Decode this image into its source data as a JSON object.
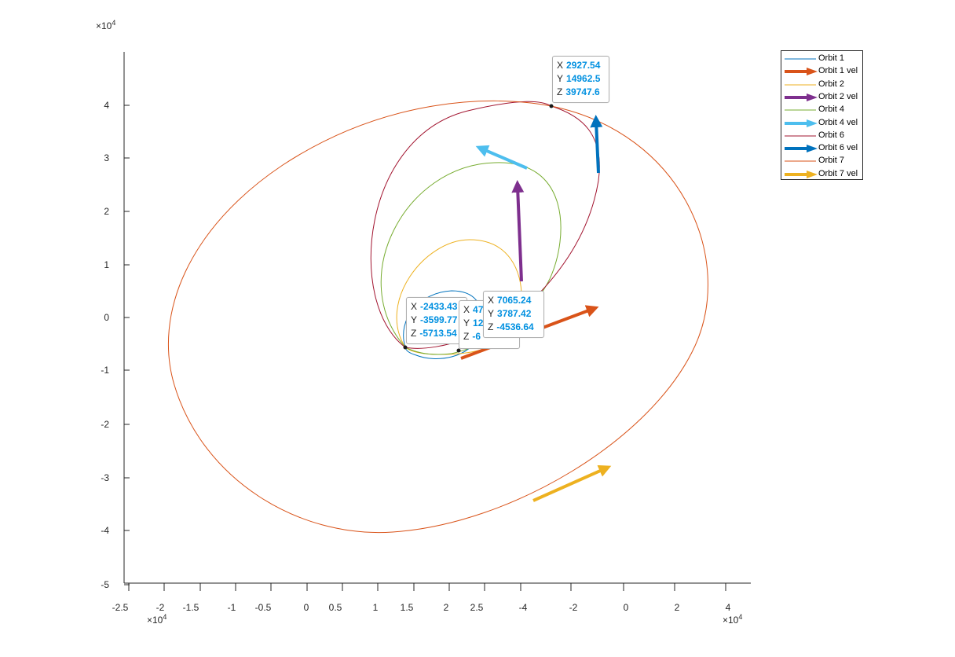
{
  "chart_data": {
    "type": "line",
    "title": "",
    "xlabel": "",
    "ylabel": "",
    "x_exponent": "×10",
    "x_exponent_power": "4",
    "y_exponent": "×10",
    "y_exponent_power": "4",
    "z_exponent": "×10",
    "z_exponent_power": "4",
    "y_ticks": [
      "-5",
      "-4",
      "-3",
      "-2",
      "-1",
      "0",
      "1",
      "2",
      "3",
      "4"
    ],
    "x_ticks": [
      "-2.5",
      "-2",
      "-1.5",
      "-1",
      "-0.5",
      "0",
      "0.5",
      "1",
      "1.5",
      "2",
      "2.5"
    ],
    "z_ticks": [
      "-4",
      "-2",
      "0",
      "2",
      "4"
    ],
    "legend_position": "top-right",
    "series": [
      {
        "name": "Orbit 1",
        "kind": "line",
        "color": "#0072bd"
      },
      {
        "name": "Orbit 1 vel",
        "kind": "arrow",
        "color": "#d95319"
      },
      {
        "name": "Orbit 2",
        "kind": "line",
        "color": "#edb120"
      },
      {
        "name": "Orbit 2 vel",
        "kind": "arrow",
        "color": "#7e2f8e"
      },
      {
        "name": "Orbit 4",
        "kind": "line",
        "color": "#77ac30"
      },
      {
        "name": "Orbit 4 vel",
        "kind": "arrow",
        "color": "#4dbeee"
      },
      {
        "name": "Orbit 6",
        "kind": "line",
        "color": "#a2142f"
      },
      {
        "name": "Orbit 6 vel",
        "kind": "arrow",
        "color": "#0072bd"
      },
      {
        "name": "Orbit 7",
        "kind": "line",
        "color": "#d95319"
      },
      {
        "name": "Orbit 7 vel",
        "kind": "arrow",
        "color": "#edb120"
      }
    ],
    "datatips": [
      {
        "x": "2927.54",
        "y": "14962.5",
        "z": "39747.6"
      },
      {
        "x": "-2433.43",
        "y": "-3599.77",
        "z": "-5713.54"
      },
      {
        "x": "47",
        "y": "12",
        "z": "-6"
      },
      {
        "x": "7065.24",
        "y": "3787.42",
        "z": "-4536.64"
      }
    ]
  }
}
